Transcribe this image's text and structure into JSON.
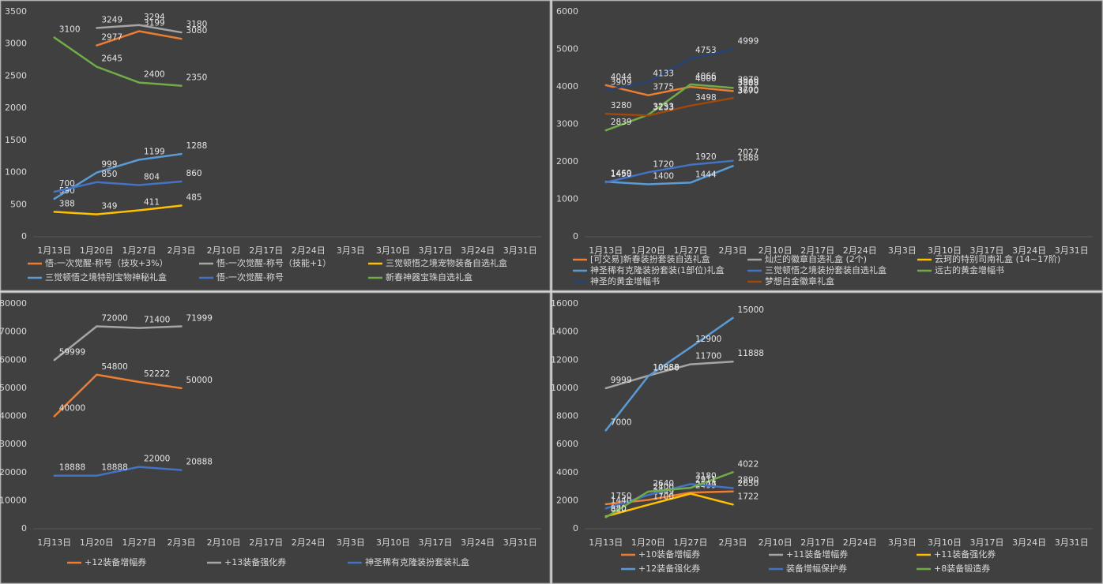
{
  "chart_data": [
    {
      "type": "line",
      "categories": [
        "1月13日",
        "1月20日",
        "1月27日",
        "2月3日",
        "2月10日",
        "2月17日",
        "2月24日",
        "3月3日",
        "3月10日",
        "3月17日",
        "3月24日",
        "3月31日"
      ],
      "ylim": [
        0,
        3500
      ],
      "yticks": [
        0,
        500,
        1000,
        1500,
        2000,
        2500,
        3000,
        3500
      ],
      "series": [
        {
          "name": "悟-一次觉醒-称号（技攻+3%）",
          "color": "#ed7d31",
          "values": [
            null,
            2977,
            3199,
            3080,
            null,
            null,
            null,
            null,
            null,
            null,
            null,
            null
          ]
        },
        {
          "name": "悟-一次觉醒-称号（技能+1）",
          "color": "#a5a5a5",
          "values": [
            null,
            3249,
            3294,
            3180,
            null,
            null,
            null,
            null,
            null,
            null,
            null,
            null
          ]
        },
        {
          "name": "三觉顿悟之境宠物装备自选礼盒",
          "color": "#ffc000",
          "values": [
            388,
            349,
            411,
            485,
            null,
            null,
            null,
            null,
            null,
            null,
            null,
            null
          ]
        },
        {
          "name": "三觉顿悟之境特别宝物神秘礼盒",
          "color": "#5b9bd5",
          "values": [
            590,
            999,
            1199,
            1288,
            null,
            null,
            null,
            null,
            null,
            null,
            null,
            null
          ]
        },
        {
          "name": "悟-一次觉醒-称号",
          "color": "#4472c4",
          "values": [
            700,
            850,
            804,
            860,
            null,
            null,
            null,
            null,
            null,
            null,
            null,
            null
          ]
        },
        {
          "name": "新春神器宝珠自选礼盒",
          "color": "#70ad47",
          "values": [
            3100,
            2645,
            2400,
            2350,
            null,
            null,
            null,
            null,
            null,
            null,
            null,
            null
          ]
        }
      ]
    },
    {
      "type": "line",
      "categories": [
        "1月13日",
        "1月20日",
        "1月27日",
        "2月3日",
        "2月10日",
        "2月17日",
        "2月24日",
        "3月3日",
        "3月10日",
        "3月17日",
        "3月24日",
        "3月31日"
      ],
      "ylim": [
        0,
        6000
      ],
      "yticks": [
        0,
        1000,
        2000,
        3000,
        4000,
        5000,
        6000
      ],
      "series": [
        {
          "name": "[可交易]新春装扮套装自选礼盒",
          "color": "#ed7d31",
          "values": [
            4044,
            3775,
            4000,
            3888,
            null,
            null,
            null,
            null,
            null,
            null,
            null,
            null
          ]
        },
        {
          "name": "灿烂的徽章自选礼盒 (2个)",
          "color": "#a5a5a5",
          "values": [
            null,
            null,
            null,
            3909,
            null,
            null,
            null,
            null,
            null,
            null,
            null,
            null
          ]
        },
        {
          "name": "云珂的特别司南礼盒 (14~17阶)",
          "color": "#ffc000",
          "values": [
            null,
            null,
            null,
            3670,
            null,
            null,
            null,
            null,
            null,
            null,
            null,
            null
          ]
        },
        {
          "name": "神圣稀有克隆装扮套装(1部位)礼盒",
          "color": "#5b9bd5",
          "values": [
            1469,
            1400,
            1444,
            1888,
            null,
            null,
            null,
            null,
            null,
            null,
            null,
            null
          ]
        },
        {
          "name": "三觉顿悟之境装扮套装自选礼盒",
          "color": "#4472c4",
          "values": [
            1450,
            1720,
            1920,
            2027,
            null,
            null,
            null,
            null,
            null,
            null,
            null,
            null
          ]
        },
        {
          "name": "远古的黄金增幅书",
          "color": "#70ad47",
          "values": [
            2839,
            3253,
            4066,
            3970,
            null,
            null,
            null,
            null,
            null,
            null,
            null,
            null
          ]
        },
        {
          "name": "神圣的黄金增幅书",
          "color": "#264478",
          "values": [
            3909,
            4133,
            4753,
            4999,
            null,
            null,
            null,
            null,
            null,
            null,
            null,
            null
          ]
        },
        {
          "name": "梦想白金徽章礼盒",
          "color": "#9e480e",
          "values": [
            3280,
            3233,
            3498,
            3700,
            null,
            null,
            null,
            null,
            null,
            null,
            null,
            null
          ]
        }
      ]
    },
    {
      "type": "line",
      "categories": [
        "1月13日",
        "1月20日",
        "1月27日",
        "2月3日",
        "2月10日",
        "2月17日",
        "2月24日",
        "3月3日",
        "3月10日",
        "3月17日",
        "3月24日",
        "3月31日"
      ],
      "ylim": [
        0,
        80000
      ],
      "yticks": [
        0,
        10000,
        20000,
        30000,
        40000,
        50000,
        60000,
        70000,
        80000
      ],
      "series": [
        {
          "name": "+12装备增幅券",
          "color": "#ed7d31",
          "values": [
            40000,
            54800,
            52222,
            50000,
            null,
            null,
            null,
            null,
            null,
            null,
            null,
            null
          ]
        },
        {
          "name": "+13装备强化券",
          "color": "#a5a5a5",
          "values": [
            59999,
            72000,
            71400,
            71999,
            null,
            null,
            null,
            null,
            null,
            null,
            null,
            null
          ]
        },
        {
          "name": "神圣稀有克隆装扮套装礼盒",
          "color": "#4472c4",
          "values": [
            18888,
            18888,
            22000,
            20888,
            null,
            null,
            null,
            null,
            null,
            null,
            null,
            null
          ]
        }
      ]
    },
    {
      "type": "line",
      "categories": [
        "1月13日",
        "1月20日",
        "1月27日",
        "2月3日",
        "2月10日",
        "2月17日",
        "2月24日",
        "3月3日",
        "3月10日",
        "3月17日",
        "3月24日",
        "3月31日"
      ],
      "ylim": [
        0,
        16000
      ],
      "yticks": [
        0,
        2000,
        4000,
        6000,
        8000,
        10000,
        12000,
        14000,
        16000
      ],
      "series": [
        {
          "name": "+10装备增幅券",
          "color": "#ed7d31",
          "values": [
            1750,
            2049,
            2577,
            2650,
            null,
            null,
            null,
            null,
            null,
            null,
            null,
            null
          ]
        },
        {
          "name": "+11装备增幅券",
          "color": "#a5a5a5",
          "values": [
            9999,
            10888,
            11700,
            11888,
            null,
            null,
            null,
            null,
            null,
            null,
            null,
            null
          ]
        },
        {
          "name": "+11装备强化券",
          "color": "#ffc000",
          "values": [
            880,
            1700,
            2499,
            1722,
            null,
            null,
            null,
            null,
            null,
            null,
            null,
            null
          ]
        },
        {
          "name": "+12装备强化券",
          "color": "#5b9bd5",
          "values": [
            7000,
            10850,
            12900,
            15000,
            null,
            null,
            null,
            null,
            null,
            null,
            null,
            null
          ]
        },
        {
          "name": "装备增幅保护券",
          "color": "#4472c4",
          "values": [
            1440,
            2400,
            3180,
            2890,
            null,
            null,
            null,
            null,
            null,
            null,
            null,
            null
          ]
        },
        {
          "name": "+8装备锻造券",
          "color": "#70ad47",
          "values": [
            820,
            2640,
            2911,
            4022,
            null,
            null,
            null,
            null,
            null,
            null,
            null,
            null
          ]
        }
      ]
    }
  ]
}
